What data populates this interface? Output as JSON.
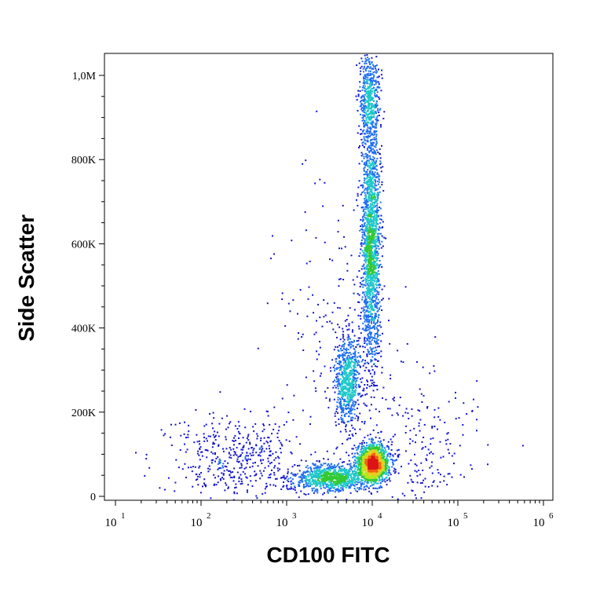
{
  "chart_data": {
    "type": "scatter",
    "title": "",
    "xlabel": "CD100 FITC",
    "ylabel": "Side Scatter",
    "x_scale": "log",
    "xlim": [
      10,
      1000000
    ],
    "ylim": [
      0,
      1050000
    ],
    "x_ticks": [
      {
        "value": 10,
        "base": "10",
        "exp": "1"
      },
      {
        "value": 100,
        "base": "10",
        "exp": "2"
      },
      {
        "value": 1000,
        "base": "10",
        "exp": "3"
      },
      {
        "value": 10000,
        "base": "10",
        "exp": "4"
      },
      {
        "value": 100000,
        "base": "10",
        "exp": "5"
      },
      {
        "value": 1000000,
        "base": "10",
        "exp": "6"
      }
    ],
    "y_ticks": [
      {
        "value": 0,
        "label": "0"
      },
      {
        "value": 200000,
        "label": "200K"
      },
      {
        "value": 400000,
        "label": "400K"
      },
      {
        "value": 600000,
        "label": "600K"
      },
      {
        "value": 800000,
        "label": "800K"
      },
      {
        "value": 1000000,
        "label": "1,0M"
      }
    ],
    "grid": false,
    "legend": "none",
    "density_colormap": [
      "#1414d2",
      "#1e6ef0",
      "#1ec8c8",
      "#32c832",
      "#b4e61e",
      "#f0c81e",
      "#f06414",
      "#dc1414"
    ],
    "populations": [
      {
        "x": 10000,
        "y": 80000,
        "x_spread_decades": 0.09,
        "y_spread": 22000,
        "count": 1700
      },
      {
        "x": 3200,
        "y": 45000,
        "x_spread_decades": 0.22,
        "y_spread": 16000,
        "count": 900
      },
      {
        "x": 5000,
        "y": 280000,
        "x_spread_decades": 0.07,
        "y_spread": 55000,
        "count": 700
      },
      {
        "x": 9500,
        "y": 600000,
        "x_spread_decades": 0.055,
        "y_spread": 140000,
        "count": 1800
      },
      {
        "x": 9000,
        "y": 940000,
        "x_spread_decades": 0.06,
        "y_spread": 60000,
        "count": 500
      },
      {
        "x": 250,
        "y": 90000,
        "x_spread_decades": 0.4,
        "y_spread": 50000,
        "count": 450
      },
      {
        "x": 3500,
        "y": 380000,
        "x_spread_decades": 0.35,
        "y_spread": 180000,
        "count": 180
      },
      {
        "x": 30000,
        "y": 120000,
        "x_spread_decades": 0.35,
        "y_spread": 80000,
        "count": 220
      }
    ]
  }
}
